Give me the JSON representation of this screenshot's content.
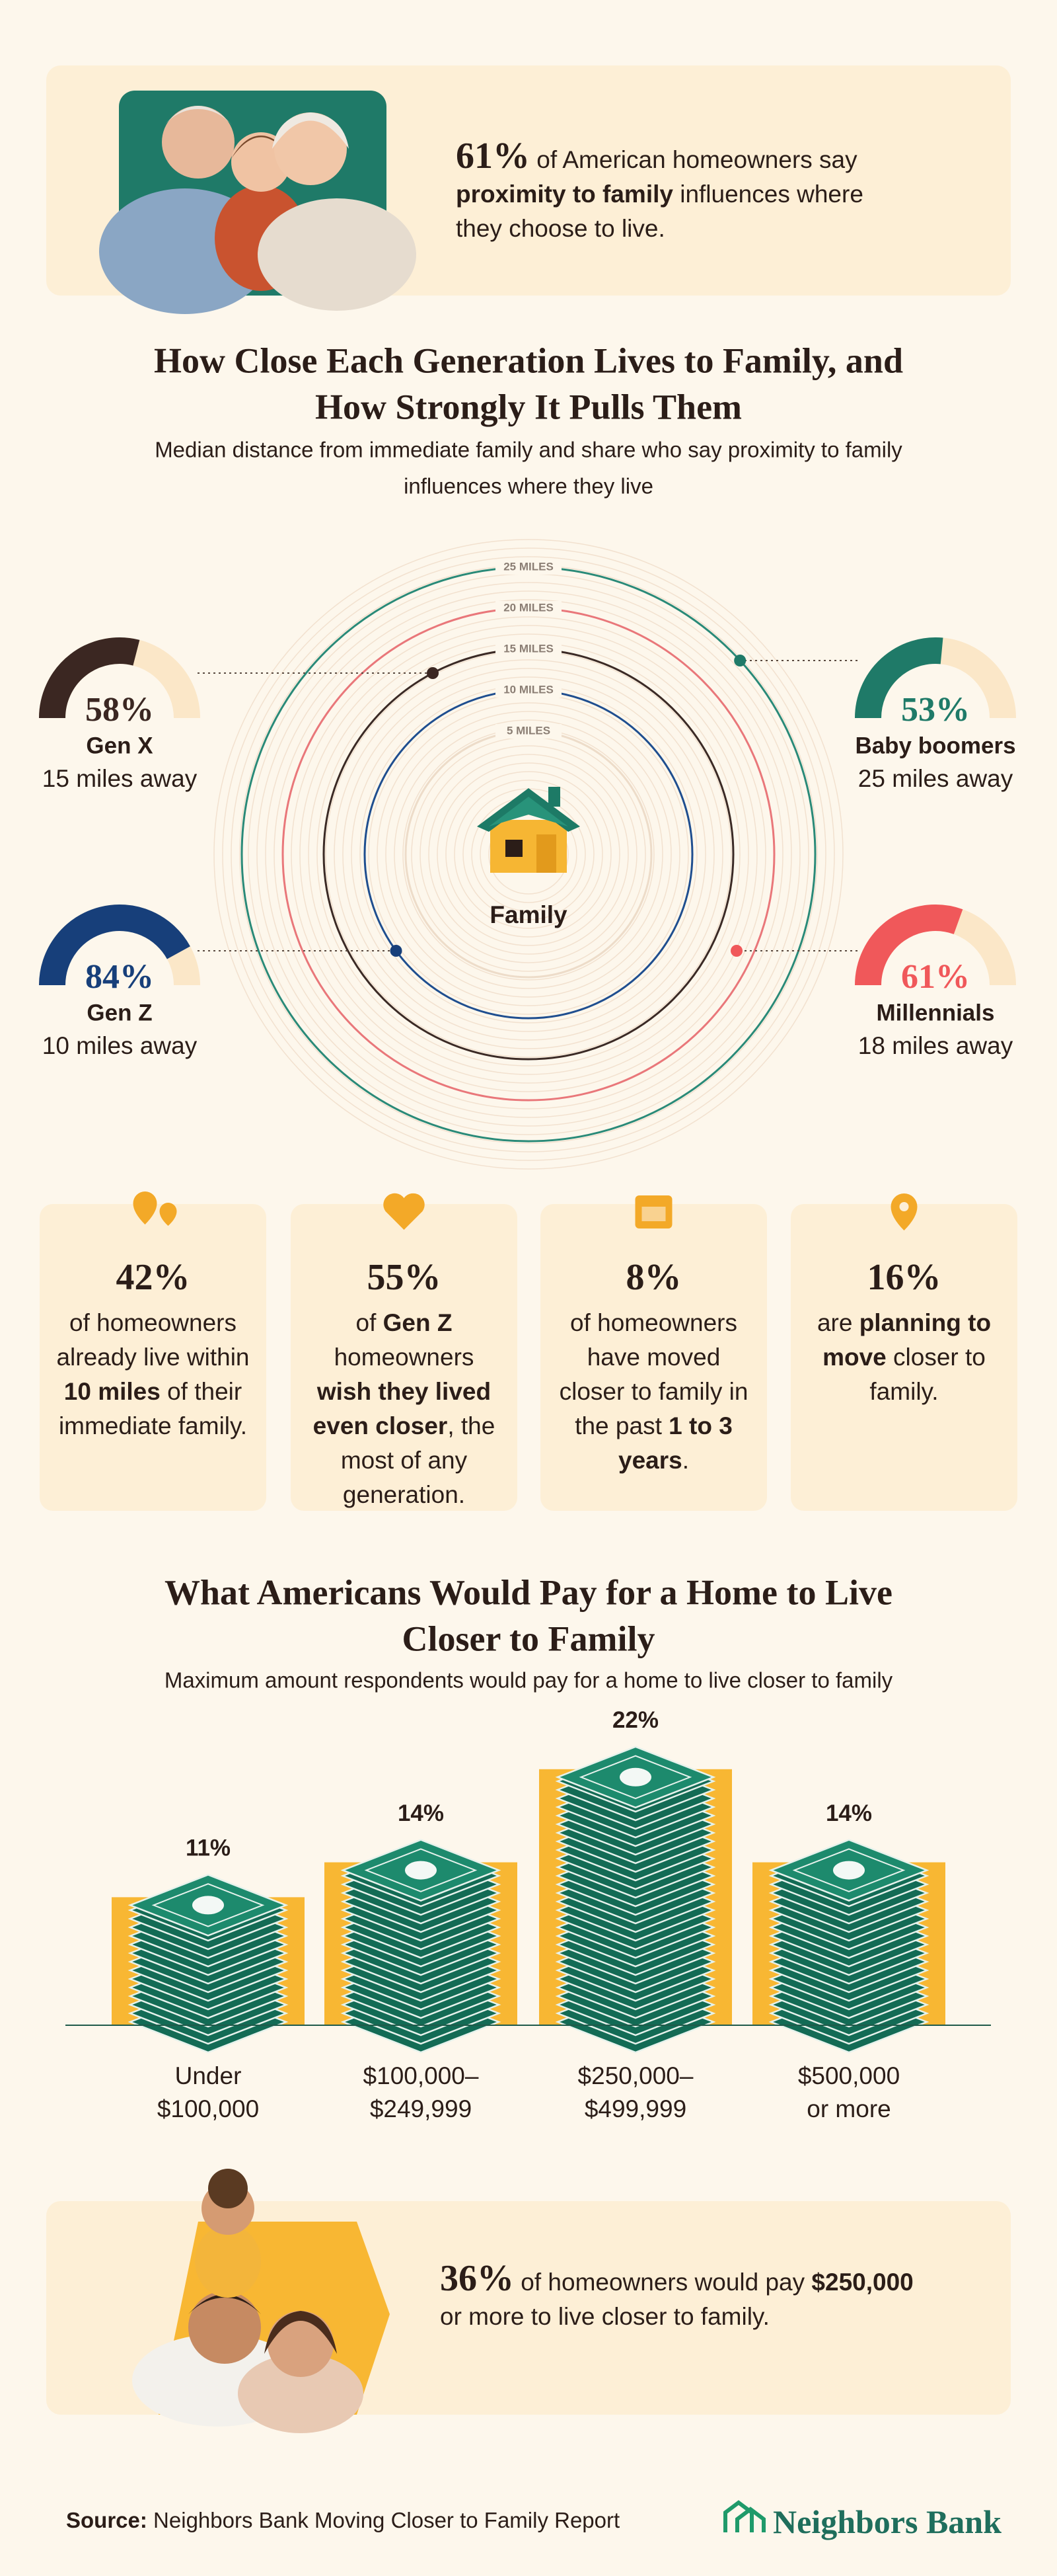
{
  "hero": {
    "stat": "61%",
    "text": [
      {
        "text": "of American homeowners say "
      },
      {
        "text": "proximity to family",
        "bold": true
      },
      {
        "text": " influences where they choose to live."
      }
    ]
  },
  "stat_cards": [
    {
      "stat": "42%",
      "text": [
        {
          "text": "of homeowners already live within "
        },
        {
          "text": "10 miles",
          "bold": true
        },
        {
          "text": " of their immediate family."
        }
      ]
    },
    {
      "stat": "55%",
      "text": [
        {
          "text": "of "
        },
        {
          "text": "Gen Z",
          "bold": true
        },
        {
          "text": " homeowners "
        },
        {
          "text": "wish they lived even closer",
          "bold": true
        },
        {
          "text": ", the most of any generation."
        }
      ]
    },
    {
      "stat": "8%",
      "text": [
        {
          "text": "of homeowners have moved closer to family in the past "
        },
        {
          "text": "1 to 3 years",
          "bold": true
        },
        {
          "text": "."
        }
      ]
    },
    {
      "stat": "16%",
      "text": [
        {
          "text": "are "
        },
        {
          "text": "planning to move",
          "bold": true
        },
        {
          "text": " closer to family."
        }
      ]
    }
  ],
  "closing": {
    "stat": "36%",
    "text": [
      {
        "text": "of homeowners would pay "
      },
      {
        "text": "$250,000",
        "bold": true
      },
      {
        "text": " or more to live closer to family."
      }
    ]
  },
  "footer": {
    "source_label": "Source:",
    "source": "Neighbors Bank Moving Closer to Family Report",
    "logo": "Neighbors Bank"
  },
  "chart_data": [
    {
      "type": "radial",
      "title": [
        "How Close Each Generation Lives to Family, and",
        "How Strongly It Pulls Them"
      ],
      "subtitle": [
        "Median distance from immediate family and share who say proximity to family",
        "influences where they live"
      ],
      "center_label": "Family",
      "rticks": [
        {
          "value": 5,
          "label": "5 MILES"
        },
        {
          "value": 10,
          "label": "10 MILES"
        },
        {
          "value": 15,
          "label": "15 MILES"
        },
        {
          "value": 20,
          "label": "20 MILES"
        },
        {
          "value": 25,
          "label": "25 MILES"
        }
      ],
      "ring_colors": [
        "#eddcc9",
        "#1f4e8f",
        "#3b2a25",
        "#e9777a",
        "#2a8a78"
      ],
      "series": [
        {
          "name": "Gen X",
          "color": "#3b2722",
          "percent": 58,
          "percent_label": "58%",
          "miles": 15,
          "miles_label": "15 miles away"
        },
        {
          "name": "Baby boomers",
          "color": "#1f7a68",
          "percent": 53,
          "percent_label": "53%",
          "miles": 25,
          "miles_label": "25 miles away"
        },
        {
          "name": "Gen Z",
          "color": "#173f7a",
          "percent": 84,
          "percent_label": "84%",
          "miles": 10,
          "miles_label": "10 miles away"
        },
        {
          "name": "Millennials",
          "color": "#f0585a",
          "percent": 61,
          "percent_label": "61%",
          "miles": 18,
          "miles_label": "18 miles away"
        }
      ]
    },
    {
      "type": "bar",
      "title": [
        "What Americans Would Pay for a Home to Live",
        "Closer to Family"
      ],
      "subtitle": "Maximum amount respondents would pay for a home to live closer to family",
      "categories": [
        [
          "Under",
          "$100,000"
        ],
        [
          "$100,000–",
          "$249,999"
        ],
        [
          "$250,000–",
          "$499,999"
        ],
        [
          "$500,000",
          "or more"
        ]
      ],
      "values": [
        11,
        14,
        22,
        14
      ],
      "value_labels": [
        "11%",
        "14%",
        "22%",
        "14%"
      ],
      "color": "#f8b733",
      "stack_color": "#136b55"
    }
  ]
}
